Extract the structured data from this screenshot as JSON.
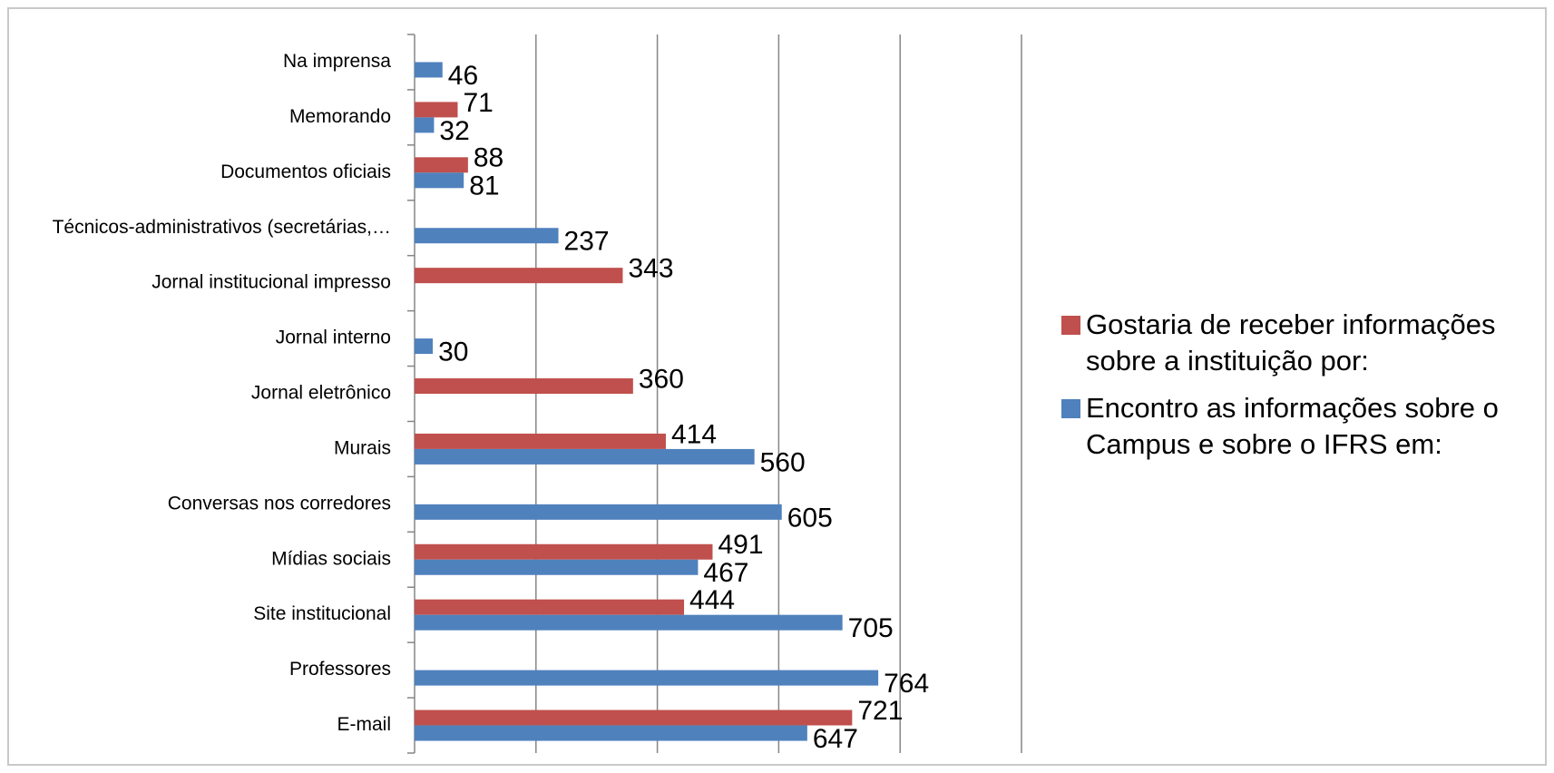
{
  "chart_data": {
    "type": "bar",
    "orientation": "horizontal",
    "categories": [
      "Na imprensa",
      "Memorando",
      "Documentos oficiais",
      "Técnicos-administrativos (secretárias,…",
      "Jornal institucional  impresso",
      "Jornal interno",
      "Jornal eletrônico",
      "Murais",
      "Conversas nos  corredores",
      "Mídias sociais",
      "Site institucional",
      "Professores",
      "E-mail"
    ],
    "series": [
      {
        "name": "Gostaria de receber informações sobre a instituição por:",
        "color": "#c0504d",
        "values": [
          null,
          71,
          88,
          null,
          343,
          null,
          360,
          414,
          null,
          491,
          444,
          null,
          721
        ]
      },
      {
        "name": "Encontro as informações sobre o Campus e sobre o IFRS em:",
        "color": "#4f81bd",
        "values": [
          46,
          32,
          81,
          237,
          null,
          30,
          null,
          560,
          605,
          467,
          705,
          764,
          647
        ]
      }
    ],
    "xlim": [
      0,
      1000
    ],
    "xticks": [
      0,
      200,
      400,
      600,
      800,
      1000
    ],
    "grid": true,
    "legend": "right"
  }
}
